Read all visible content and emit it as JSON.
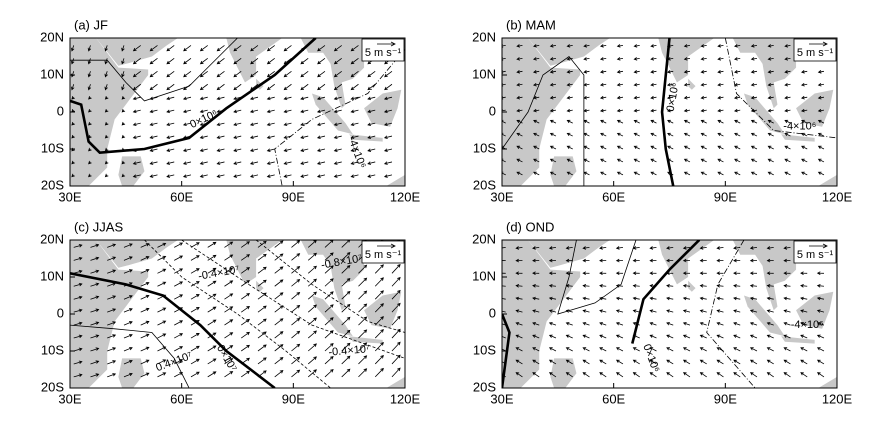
{
  "xticks": [
    "30E",
    "60E",
    "90E",
    "120E"
  ],
  "yticks": [
    "20N",
    "10N",
    "0",
    "10S",
    "20S"
  ],
  "panels": [
    {
      "title": "(a) JF",
      "reference": "5 m s⁻¹",
      "contour_labels": [
        "0×10⁶",
        "-4×10⁶"
      ]
    },
    {
      "title": "(b) MAM",
      "reference": "5 m s⁻¹",
      "contour_labels": [
        "0×10⁶",
        "-4×10⁶"
      ]
    },
    {
      "title": "(c) JJAS",
      "reference": "5 m s⁻¹",
      "contour_labels": [
        "-0.4×10⁷",
        "-0.8×10⁷",
        "0.4×10⁷",
        "0×10⁷",
        "-0.4×10⁷"
      ]
    },
    {
      "title": "(d) OND",
      "reference": "5 m s⁻¹",
      "contour_labels": [
        "0×10⁶",
        "-4×10⁶"
      ]
    }
  ]
}
